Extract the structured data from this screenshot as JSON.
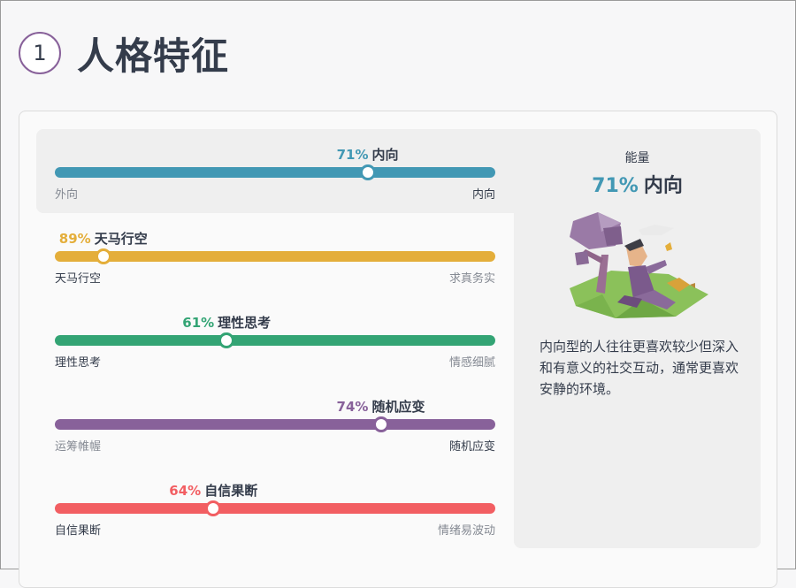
{
  "header": {
    "step_number": "1",
    "title": "人格特征"
  },
  "traits": [
    {
      "percent_label": "71%",
      "name": "内向",
      "left": "外向",
      "right": "内向",
      "value": 71,
      "color": "#4298b4",
      "highlight_side": "right"
    },
    {
      "percent_label": "89%",
      "name": "天马行空",
      "left": "天马行空",
      "right": "求真务实",
      "value": 11,
      "color": "#e4ae3a",
      "highlight_side": "left"
    },
    {
      "percent_label": "61%",
      "name": "理性思考",
      "left": "理性思考",
      "right": "情感细腻",
      "value": 39,
      "color": "#33a474",
      "highlight_side": "left"
    },
    {
      "percent_label": "74%",
      "name": "随机应变",
      "left": "运筹帷幄",
      "right": "随机应变",
      "value": 74,
      "color": "#88619a",
      "highlight_side": "right"
    },
    {
      "percent_label": "64%",
      "name": "自信果断",
      "left": "自信果断",
      "right": "情绪易波动",
      "value": 36,
      "color": "#f25e62",
      "highlight_side": "left"
    }
  ],
  "panel": {
    "caption": "能量",
    "percent": "71%",
    "trait": "内向",
    "description": "内向型的人往往更喜欢较少但深入和有意义的社交互动，通常更喜欢安静的环境。",
    "illustration": "person-sitting-under-tree-illustration"
  }
}
